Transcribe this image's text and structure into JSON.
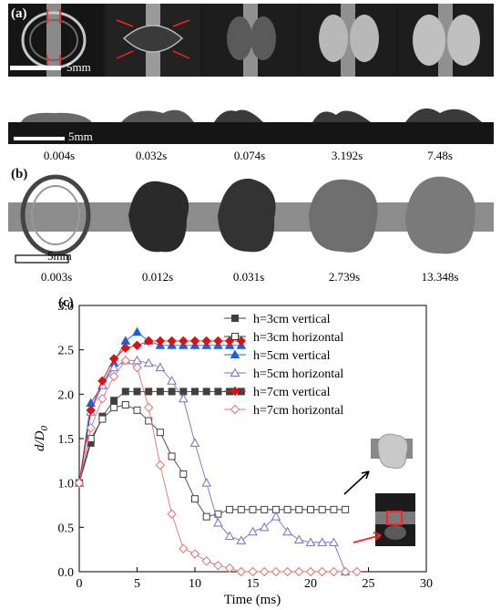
{
  "panel_a": {
    "label": "(a)",
    "top_scale_label": "5mm",
    "side_scale_label": "5mm",
    "times": [
      "0.004s",
      "0.032s",
      "0.074s",
      "3.192s",
      "7.48s"
    ]
  },
  "panel_b": {
    "label": "(b)",
    "scale_label": "5mm",
    "times": [
      "0.003s",
      "0.012s",
      "0.031s",
      "2.739s",
      "13.348s"
    ]
  },
  "panel_c": {
    "label": "(c)"
  },
  "chart_data": {
    "type": "line",
    "xlabel": "Time (ms)",
    "ylabel": "d/D",
    "ylabel_sub": "0",
    "xlim": [
      0,
      30
    ],
    "ylim": [
      0,
      3.0
    ],
    "xticks": [
      "0",
      "5",
      "10",
      "15",
      "20",
      "25",
      "30"
    ],
    "yticks": [
      "0.0",
      "0.5",
      "1.0",
      "1.5",
      "2.0",
      "2.5",
      "3.0"
    ],
    "legend_position": "top-right",
    "series": [
      {
        "name": "h=3cm vertical",
        "color": "#404040",
        "marker": "square",
        "filled": true,
        "x": [
          0,
          1,
          2,
          3,
          4,
          5,
          6,
          7,
          8,
          9,
          10,
          11,
          12,
          13,
          14
        ],
        "y": [
          1.0,
          1.45,
          1.75,
          1.93,
          2.03,
          2.03,
          2.03,
          2.03,
          2.03,
          2.03,
          2.03,
          2.03,
          2.03,
          2.03,
          2.03
        ]
      },
      {
        "name": "h=3cm horizontal",
        "color": "#404040",
        "marker": "square",
        "filled": false,
        "x": [
          0,
          1,
          2,
          3,
          4,
          5,
          6,
          7,
          8,
          9,
          10,
          11,
          12,
          13,
          14,
          15,
          16,
          17,
          18,
          19,
          20,
          21,
          22,
          23
        ],
        "y": [
          1.0,
          1.5,
          1.72,
          1.85,
          1.88,
          1.82,
          1.7,
          1.57,
          1.3,
          1.1,
          0.82,
          0.62,
          0.65,
          0.7,
          0.7,
          0.7,
          0.7,
          0.7,
          0.7,
          0.7,
          0.7,
          0.7,
          0.7,
          0.7
        ]
      },
      {
        "name": "h=5cm vertical",
        "color": "#2060cc",
        "marker": "triangle",
        "filled": true,
        "x": [
          0,
          1,
          2,
          3,
          4,
          5,
          6,
          7,
          8,
          9,
          10,
          11,
          12,
          13,
          14
        ],
        "y": [
          1.0,
          1.9,
          2.1,
          2.35,
          2.6,
          2.7,
          2.6,
          2.55,
          2.55,
          2.55,
          2.55,
          2.55,
          2.55,
          2.55,
          2.55
        ]
      },
      {
        "name": "h=5cm horizontal",
        "color": "#7070c8",
        "marker": "triangle",
        "filled": false,
        "x": [
          0,
          1,
          2,
          3,
          4,
          5,
          6,
          7,
          8,
          9,
          10,
          11,
          12,
          13,
          14,
          15,
          16,
          17,
          18,
          19,
          20,
          21,
          22,
          23
        ],
        "y": [
          1.0,
          1.8,
          2.1,
          2.3,
          2.38,
          2.38,
          2.35,
          2.3,
          2.15,
          1.95,
          1.45,
          1.0,
          0.55,
          0.4,
          0.35,
          0.45,
          0.5,
          0.62,
          0.45,
          0.36,
          0.33,
          0.33,
          0.33,
          0.0
        ]
      },
      {
        "name": "h=7cm vertical",
        "color": "#e01010",
        "marker": "diamond",
        "filled": true,
        "x": [
          0,
          1,
          2,
          3,
          4,
          5,
          6,
          7,
          8,
          9,
          10,
          11,
          12,
          13,
          14
        ],
        "y": [
          1.0,
          1.82,
          2.15,
          2.4,
          2.52,
          2.55,
          2.6,
          2.6,
          2.6,
          2.6,
          2.6,
          2.6,
          2.6,
          2.6,
          2.6
        ]
      },
      {
        "name": "h=7cm horizontal",
        "color": "#e07070",
        "marker": "diamond",
        "filled": false,
        "x": [
          0,
          1,
          2,
          3,
          4,
          5,
          6,
          7,
          8,
          9,
          10,
          11,
          12,
          13,
          14,
          15,
          16,
          17,
          18,
          19,
          20,
          21,
          22,
          23,
          24
        ],
        "y": [
          1.0,
          1.62,
          1.95,
          2.2,
          2.38,
          2.3,
          1.85,
          1.2,
          0.65,
          0.26,
          0.2,
          0.12,
          0.07,
          0.04,
          0.0,
          0.0,
          0.0,
          0.0,
          0.0,
          0.0,
          0.0,
          0.0,
          0.0,
          0.0,
          0.0
        ]
      }
    ]
  }
}
